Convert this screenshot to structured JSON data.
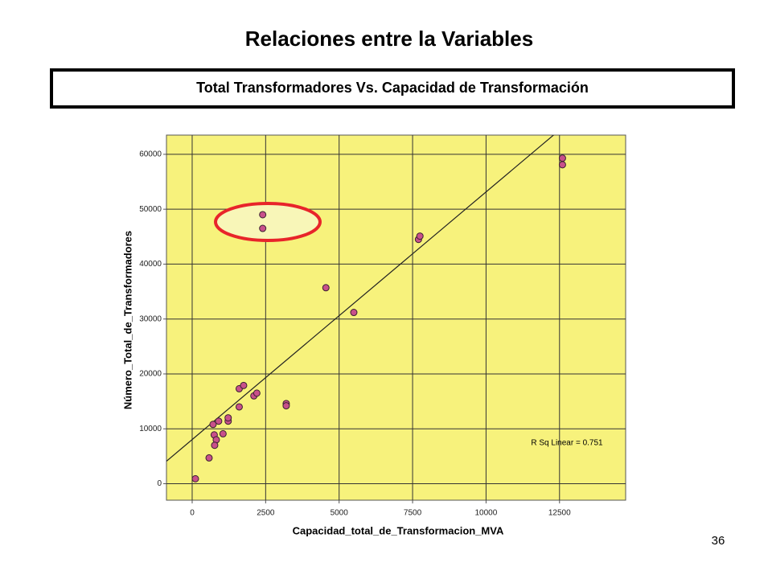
{
  "slide": {
    "title": "Relaciones entre la Variables",
    "page_number": "36"
  },
  "chart_data": {
    "type": "scatter",
    "title": "Total Transformadores Vs. Capacidad de Transformación",
    "xlabel": "Capacidad_total_de_Transformacion_MVA",
    "ylabel": "Número_Total_de_Transformadores",
    "annotation": "R Sq Linear = 0.751",
    "x": [
      110,
      575,
      750,
      710,
      900,
      820,
      765,
      1050,
      1225,
      1225,
      1600,
      1600,
      1750,
      2100,
      2200,
      3200,
      3200,
      2400,
      2400,
      4550,
      5500,
      7700,
      7750,
      12600,
      12600
    ],
    "values": [
      900,
      4700,
      8900,
      10800,
      11400,
      8000,
      7000,
      9100,
      11400,
      12000,
      14000,
      17300,
      17900,
      16000,
      16500,
      14600,
      14200,
      46500,
      49000,
      35700,
      31200,
      44500,
      45100,
      59300,
      58100
    ],
    "color": "#c8508a",
    "background": "#f7f27c",
    "fit_line": {
      "intercept": 8050,
      "slope": 4.51
    },
    "xlim": [
      -875,
      14750
    ],
    "xticks": [
      0,
      2500,
      5000,
      7500,
      10000,
      12500
    ],
    "ylim": [
      -3000,
      63500
    ],
    "yticks": [
      0,
      10000,
      20000,
      30000,
      40000,
      50000,
      60000
    ],
    "grid": true
  }
}
